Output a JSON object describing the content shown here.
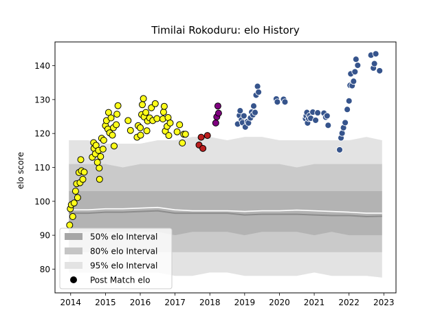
{
  "chart_data": {
    "type": "scatter",
    "title": "Timilai Rokoduru: elo History",
    "xlabel": "",
    "ylabel": "elo score",
    "xlim": [
      2013.55,
      2023.35
    ],
    "ylim": [
      73,
      147
    ],
    "x_ticks": [
      "2014",
      "2015",
      "2016",
      "2017",
      "2018",
      "2019",
      "2020",
      "2021",
      "2022",
      "2023"
    ],
    "y_ticks": [
      "80",
      "90",
      "100",
      "110",
      "120",
      "130",
      "140"
    ],
    "legend": {
      "placement": "lower-left",
      "items": [
        {
          "label": "50% elo Interval",
          "swatch": "#a6a6a6"
        },
        {
          "label": "80% elo Interval",
          "swatch": "#c5c5c5"
        },
        {
          "label": "95% elo Interval",
          "swatch": "#e3e3e3"
        },
        {
          "label": "Post Match elo",
          "swatch": "#000000"
        }
      ]
    },
    "bands": {
      "x": [
        2013.95,
        2014.5,
        2015,
        2015.5,
        2016,
        2016.5,
        2017,
        2017.5,
        2018,
        2018.5,
        2019,
        2019.5,
        2020,
        2020.5,
        2021,
        2021.5,
        2022,
        2022.5,
        2022.95
      ],
      "p95_lo": [
        79,
        79,
        79,
        79,
        79,
        79,
        78,
        78,
        79,
        79,
        78,
        78,
        78,
        78,
        79,
        78,
        78,
        78,
        77.5
      ],
      "p95_hi": [
        118,
        118,
        117,
        117,
        117,
        118,
        118,
        119,
        119,
        118,
        119,
        119,
        118,
        118,
        118,
        118,
        118,
        119,
        118
      ],
      "p80_lo": [
        85,
        85,
        85,
        85,
        85,
        85,
        85,
        85,
        85,
        85,
        85,
        85,
        85,
        85,
        85,
        85,
        85,
        85,
        85
      ],
      "p80_hi": [
        111,
        111,
        111,
        110,
        111,
        111,
        111,
        111,
        111,
        111,
        111,
        111,
        111,
        110,
        111,
        111,
        111,
        111,
        111
      ],
      "p50_lo": [
        91,
        91,
        91,
        91,
        91,
        91,
        90,
        91,
        91,
        91,
        90,
        91,
        91,
        91,
        90,
        91,
        90,
        90,
        90
      ],
      "p50_hi": [
        103,
        103,
        103,
        103,
        103,
        103,
        103,
        103,
        103,
        103,
        103,
        103,
        103,
        103,
        103,
        103,
        103,
        103,
        103
      ],
      "median": [
        96.5,
        96.5,
        96.8,
        96.8,
        97,
        97.2,
        96.5,
        96.5,
        96.5,
        96.5,
        96,
        96.2,
        96.2,
        96.2,
        96,
        95.8,
        95.8,
        95.5,
        95.6
      ],
      "mean": [
        97.5,
        97.5,
        97.8,
        97.8,
        98,
        98.2,
        97.5,
        97.2,
        97.2,
        97.2,
        97,
        97.2,
        97.2,
        97.4,
        97.2,
        97,
        96.8,
        96.5,
        96.5
      ]
    },
    "series": [
      {
        "color": "#ffff1a",
        "points": [
          [
            2013.97,
            93
          ],
          [
            2013.99,
            97.8
          ],
          [
            2014.02,
            99
          ],
          [
            2014.06,
            95.5
          ],
          [
            2014.1,
            99.5
          ],
          [
            2014.14,
            103
          ],
          [
            2014.17,
            105.2
          ],
          [
            2014.2,
            101.1
          ],
          [
            2014.24,
            108.5
          ],
          [
            2014.27,
            105.5
          ],
          [
            2014.29,
            112.3
          ],
          [
            2014.31,
            109
          ],
          [
            2014.35,
            106.5
          ],
          [
            2014.39,
            108.6
          ],
          [
            2014.62,
            113
          ],
          [
            2014.66,
            117.3
          ],
          [
            2014.67,
            115.6
          ],
          [
            2014.71,
            114
          ],
          [
            2014.73,
            116.5
          ],
          [
            2014.77,
            111.5
          ],
          [
            2014.8,
            115
          ],
          [
            2014.82,
            109.8
          ],
          [
            2014.83,
            106.5
          ],
          [
            2014.86,
            113.2
          ],
          [
            2014.89,
            118.6
          ],
          [
            2014.93,
            115.4
          ],
          [
            2014.95,
            118
          ],
          [
            2015.0,
            122.3
          ],
          [
            2015.03,
            123.8
          ],
          [
            2015.07,
            121.3
          ],
          [
            2015.09,
            126.2
          ],
          [
            2015.12,
            120.2
          ],
          [
            2015.16,
            124.6
          ],
          [
            2015.2,
            119.5
          ],
          [
            2015.23,
            121.7
          ],
          [
            2015.25,
            116.3
          ],
          [
            2015.31,
            122.6
          ],
          [
            2015.33,
            125.7
          ],
          [
            2015.36,
            128.2
          ],
          [
            2015.65,
            123.8
          ],
          [
            2015.72,
            120.9
          ],
          [
            2015.91,
            118.9
          ],
          [
            2015.94,
            122.3
          ],
          [
            2016.0,
            121.7
          ],
          [
            2016.01,
            119.5
          ],
          [
            2016.04,
            125.6
          ],
          [
            2016.06,
            128.5
          ],
          [
            2016.09,
            130.3
          ],
          [
            2016.11,
            124.9
          ],
          [
            2016.16,
            126.2
          ],
          [
            2016.19,
            120.8
          ],
          [
            2016.21,
            123.7
          ],
          [
            2016.27,
            124.6
          ],
          [
            2016.32,
            127.6
          ],
          [
            2016.36,
            123.8
          ],
          [
            2016.43,
            128.8
          ],
          [
            2016.48,
            124.4
          ],
          [
            2016.65,
            124.3
          ],
          [
            2016.67,
            126.3
          ],
          [
            2016.69,
            128
          ],
          [
            2016.72,
            120.7
          ],
          [
            2016.77,
            122.1
          ],
          [
            2016.8,
            124.7
          ],
          [
            2016.82,
            119.4
          ],
          [
            2016.86,
            123.1
          ],
          [
            2017.06,
            120.5
          ],
          [
            2017.13,
            122.6
          ],
          [
            2017.21,
            117.2
          ],
          [
            2017.25,
            119.8
          ],
          [
            2017.3,
            119.8
          ]
        ]
      },
      {
        "color": "#ba1e1e",
        "points": [
          [
            2017.69,
            116.6
          ],
          [
            2017.75,
            118.9
          ],
          [
            2017.8,
            115.6
          ],
          [
            2017.93,
            119.4
          ]
        ]
      },
      {
        "color": "#800080",
        "points": [
          [
            2018.17,
            123.1
          ],
          [
            2018.2,
            124.9
          ],
          [
            2018.23,
            128.1
          ],
          [
            2018.25,
            126
          ]
        ]
      },
      {
        "color": "#36548c",
        "points": [
          [
            2018.8,
            122.8
          ],
          [
            2018.85,
            125.3
          ],
          [
            2018.87,
            126.7
          ],
          [
            2018.91,
            124
          ],
          [
            2018.94,
            123.2
          ],
          [
            2018.98,
            125.2
          ],
          [
            2019.02,
            121.9
          ],
          [
            2019.08,
            123.5
          ],
          [
            2019.11,
            123.1
          ],
          [
            2019.17,
            124.6
          ],
          [
            2019.2,
            126.3
          ],
          [
            2019.24,
            125.5
          ],
          [
            2019.26,
            128.1
          ],
          [
            2019.3,
            126.2
          ],
          [
            2019.33,
            131.3
          ],
          [
            2019.37,
            133.9
          ],
          [
            2019.4,
            132.2
          ],
          [
            2019.91,
            130.2
          ],
          [
            2019.94,
            129.3
          ],
          [
            2020.12,
            130.1
          ],
          [
            2020.16,
            129.3
          ],
          [
            2020.75,
            124.4
          ],
          [
            2020.77,
            125.2
          ],
          [
            2020.79,
            126.2
          ],
          [
            2020.81,
            123.1
          ],
          [
            2020.84,
            124.4
          ],
          [
            2020.87,
            125.3
          ],
          [
            2020.9,
            124.5
          ],
          [
            2020.96,
            126.3
          ],
          [
            2021.04,
            123.9
          ],
          [
            2021.1,
            126.1
          ],
          [
            2021.28,
            126
          ],
          [
            2021.33,
            124.8
          ],
          [
            2021.37,
            125.2
          ],
          [
            2021.4,
            122.4
          ],
          [
            2021.73,
            115.2
          ],
          [
            2021.77,
            118.7
          ],
          [
            2021.8,
            120.1
          ],
          [
            2021.84,
            121.7
          ],
          [
            2021.89,
            123.2
          ],
          [
            2021.95,
            127.1
          ],
          [
            2022.0,
            129.6
          ],
          [
            2022.03,
            134.2
          ],
          [
            2022.05,
            137.6
          ],
          [
            2022.09,
            134.1
          ],
          [
            2022.13,
            135.4
          ],
          [
            2022.17,
            138.2
          ],
          [
            2022.2,
            141.9
          ],
          [
            2022.25,
            140.1
          ],
          [
            2022.63,
            143.1
          ],
          [
            2022.7,
            139.3
          ],
          [
            2022.73,
            140.6
          ],
          [
            2022.77,
            143.5
          ],
          [
            2022.88,
            138.5
          ]
        ]
      }
    ]
  }
}
